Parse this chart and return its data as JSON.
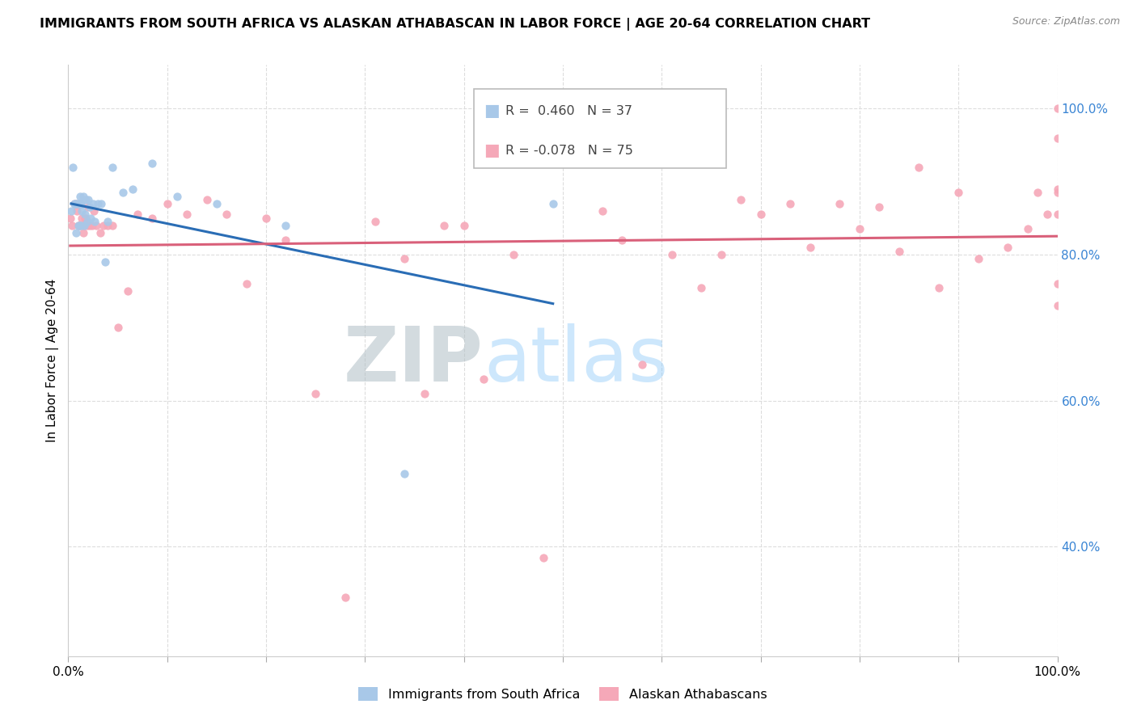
{
  "title": "IMMIGRANTS FROM SOUTH AFRICA VS ALASKAN ATHABASCAN IN LABOR FORCE | AGE 20-64 CORRELATION CHART",
  "source": "Source: ZipAtlas.com",
  "ylabel": "In Labor Force | Age 20-64",
  "R_blue": 0.46,
  "N_blue": 37,
  "R_pink": -0.078,
  "N_pink": 75,
  "legend_blue": "Immigrants from South Africa",
  "legend_pink": "Alaskan Athabascans",
  "xlim": [
    0,
    1
  ],
  "ylim": [
    0.25,
    1.06
  ],
  "blue_color": "#a8c8e8",
  "blue_line_color": "#2a6db5",
  "pink_color": "#f5a8b8",
  "pink_line_color": "#d9607a",
  "blue_x": [
    0.003,
    0.005,
    0.006,
    0.007,
    0.008,
    0.009,
    0.01,
    0.01,
    0.011,
    0.012,
    0.012,
    0.013,
    0.013,
    0.014,
    0.015,
    0.016,
    0.017,
    0.018,
    0.019,
    0.02,
    0.022,
    0.023,
    0.025,
    0.027,
    0.03,
    0.033,
    0.037,
    0.04,
    0.045,
    0.055,
    0.065,
    0.085,
    0.11,
    0.15,
    0.22,
    0.34,
    0.49
  ],
  "blue_y": [
    0.86,
    0.92,
    0.87,
    0.87,
    0.83,
    0.87,
    0.84,
    0.87,
    0.87,
    0.84,
    0.88,
    0.84,
    0.87,
    0.86,
    0.88,
    0.84,
    0.855,
    0.875,
    0.845,
    0.875,
    0.865,
    0.85,
    0.87,
    0.845,
    0.87,
    0.87,
    0.79,
    0.845,
    0.92,
    0.885,
    0.89,
    0.925,
    0.88,
    0.87,
    0.84,
    0.5,
    0.87
  ],
  "pink_x": [
    0.002,
    0.004,
    0.006,
    0.008,
    0.009,
    0.01,
    0.011,
    0.012,
    0.013,
    0.014,
    0.015,
    0.016,
    0.017,
    0.018,
    0.019,
    0.02,
    0.022,
    0.024,
    0.026,
    0.028,
    0.032,
    0.036,
    0.04,
    0.045,
    0.05,
    0.06,
    0.07,
    0.085,
    0.1,
    0.12,
    0.14,
    0.16,
    0.18,
    0.2,
    0.22,
    0.25,
    0.28,
    0.31,
    0.34,
    0.36,
    0.38,
    0.4,
    0.42,
    0.45,
    0.48,
    0.51,
    0.54,
    0.56,
    0.58,
    0.61,
    0.64,
    0.66,
    0.68,
    0.7,
    0.73,
    0.75,
    0.78,
    0.8,
    0.82,
    0.84,
    0.86,
    0.88,
    0.9,
    0.92,
    0.95,
    0.97,
    0.98,
    0.99,
    1.0,
    1.0,
    1.0,
    1.0,
    1.0,
    1.0,
    1.0
  ],
  "pink_y": [
    0.85,
    0.84,
    0.87,
    0.87,
    0.86,
    0.84,
    0.84,
    0.87,
    0.87,
    0.85,
    0.83,
    0.84,
    0.85,
    0.85,
    0.84,
    0.865,
    0.84,
    0.84,
    0.86,
    0.84,
    0.83,
    0.84,
    0.84,
    0.84,
    0.7,
    0.75,
    0.855,
    0.85,
    0.87,
    0.855,
    0.875,
    0.855,
    0.76,
    0.85,
    0.82,
    0.61,
    0.33,
    0.845,
    0.795,
    0.61,
    0.84,
    0.84,
    0.63,
    0.8,
    0.385,
    0.93,
    0.86,
    0.82,
    0.65,
    0.8,
    0.755,
    0.8,
    0.875,
    0.855,
    0.87,
    0.81,
    0.87,
    0.835,
    0.865,
    0.805,
    0.92,
    0.755,
    0.885,
    0.795,
    0.81,
    0.835,
    0.885,
    0.855,
    0.76,
    0.855,
    0.885,
    0.89,
    1.0,
    0.96,
    0.73
  ],
  "ytick_right": [
    0.4,
    0.6,
    0.8,
    1.0
  ],
  "xtick_labels_show": [
    0.0,
    1.0
  ],
  "grid_color": "#dddddd",
  "watermark_zip": "ZIP",
  "watermark_atlas": "atlas"
}
